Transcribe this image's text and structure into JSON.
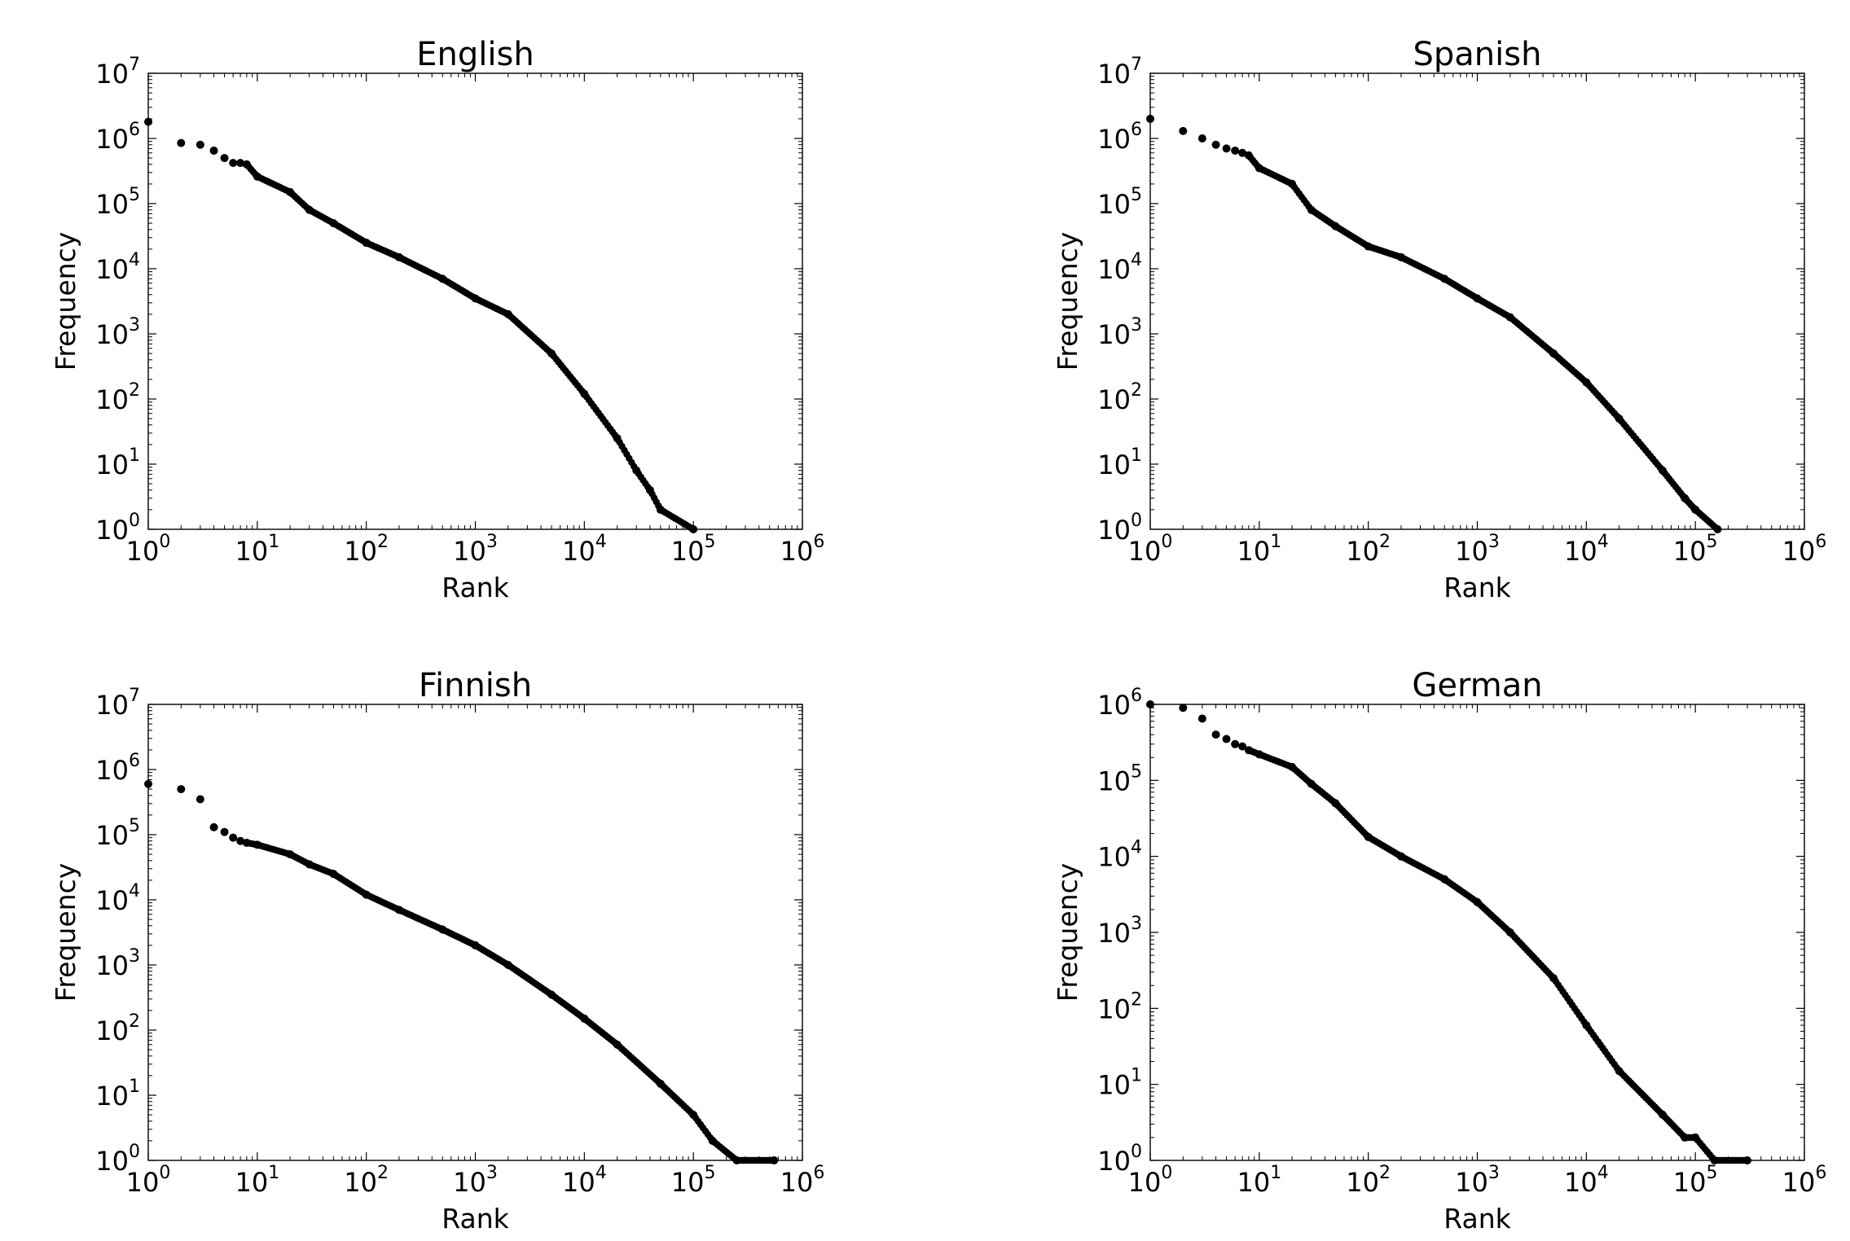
{
  "chart_data": [
    {
      "type": "scatter",
      "title": "English",
      "xlabel": "Rank",
      "ylabel": "Frequency",
      "xscale": "log",
      "yscale": "log",
      "xlim": [
        1,
        1000000
      ],
      "ylim": [
        1,
        10000000
      ],
      "x_tick_labels": [
        "10^0",
        "10^1",
        "10^2",
        "10^3",
        "10^4",
        "10^5",
        "10^6"
      ],
      "y_tick_labels": [
        "10^0",
        "10^1",
        "10^2",
        "10^3",
        "10^4",
        "10^5",
        "10^6",
        "10^7"
      ],
      "grid": false,
      "legend": "none",
      "marker_color": "#000000",
      "x": [
        1,
        2,
        3,
        4,
        5,
        6,
        7,
        8,
        10,
        20,
        30,
        50,
        100,
        200,
        500,
        1000,
        2000,
        5000,
        10000,
        20000,
        30000,
        40000,
        50000,
        100000
      ],
      "y": [
        1800000,
        850000,
        800000,
        650000,
        500000,
        420000,
        420000,
        400000,
        260000,
        150000,
        80000,
        50000,
        25000,
        15000,
        7000,
        3500,
        2000,
        500,
        120,
        25,
        8,
        4,
        2,
        1
      ]
    },
    {
      "type": "scatter",
      "title": "Spanish",
      "xlabel": "Rank",
      "ylabel": "Frequency",
      "xscale": "log",
      "yscale": "log",
      "xlim": [
        1,
        1000000
      ],
      "ylim": [
        1,
        10000000
      ],
      "x_tick_labels": [
        "10^0",
        "10^1",
        "10^2",
        "10^3",
        "10^4",
        "10^5",
        "10^6"
      ],
      "y_tick_labels": [
        "10^0",
        "10^1",
        "10^2",
        "10^3",
        "10^4",
        "10^5",
        "10^6",
        "10^7"
      ],
      "grid": false,
      "legend": "none",
      "marker_color": "#000000",
      "x": [
        1,
        2,
        3,
        4,
        5,
        6,
        7,
        8,
        10,
        20,
        30,
        50,
        100,
        200,
        500,
        1000,
        2000,
        5000,
        10000,
        20000,
        50000,
        80000,
        100000,
        160000
      ],
      "y": [
        2000000,
        1300000,
        1000000,
        800000,
        700000,
        650000,
        600000,
        550000,
        350000,
        200000,
        80000,
        45000,
        22000,
        15000,
        7000,
        3500,
        1800,
        500,
        180,
        50,
        8,
        3,
        2,
        1
      ]
    },
    {
      "type": "scatter",
      "title": "Finnish",
      "xlabel": "Rank",
      "ylabel": "Frequency",
      "xscale": "log",
      "yscale": "log",
      "xlim": [
        1,
        1000000
      ],
      "ylim": [
        1,
        10000000
      ],
      "x_tick_labels": [
        "10^0",
        "10^1",
        "10^2",
        "10^3",
        "10^4",
        "10^5",
        "10^6"
      ],
      "y_tick_labels": [
        "10^0",
        "10^1",
        "10^2",
        "10^3",
        "10^4",
        "10^5",
        "10^6",
        "10^7"
      ],
      "grid": false,
      "legend": "none",
      "marker_color": "#000000",
      "x": [
        1,
        2,
        3,
        4,
        5,
        6,
        7,
        8,
        10,
        20,
        30,
        50,
        100,
        200,
        500,
        1000,
        2000,
        5000,
        10000,
        20000,
        50000,
        100000,
        150000,
        250000,
        550000
      ],
      "y": [
        600000,
        500000,
        350000,
        130000,
        110000,
        90000,
        80000,
        75000,
        70000,
        50000,
        35000,
        25000,
        12000,
        7000,
        3500,
        2000,
        1000,
        350,
        150,
        60,
        15,
        5,
        2,
        1,
        1
      ]
    },
    {
      "type": "scatter",
      "title": "German",
      "xlabel": "Rank",
      "ylabel": "Frequency",
      "xscale": "log",
      "yscale": "log",
      "xlim": [
        1,
        1000000
      ],
      "ylim": [
        1,
        1000000
      ],
      "x_tick_labels": [
        "10^0",
        "10^1",
        "10^2",
        "10^3",
        "10^4",
        "10^5",
        "10^6"
      ],
      "y_tick_labels": [
        "10^0",
        "10^1",
        "10^2",
        "10^3",
        "10^4",
        "10^5",
        "10^6"
      ],
      "grid": false,
      "legend": "none",
      "marker_color": "#000000",
      "x": [
        1,
        2,
        3,
        4,
        5,
        6,
        7,
        8,
        10,
        20,
        30,
        50,
        100,
        200,
        500,
        1000,
        2000,
        5000,
        10000,
        20000,
        50000,
        80000,
        100000,
        150000,
        300000
      ],
      "y": [
        1000000,
        900000,
        650000,
        400000,
        350000,
        300000,
        280000,
        250000,
        220000,
        150000,
        90000,
        50000,
        18000,
        10000,
        5000,
        2500,
        1000,
        250,
        60,
        15,
        4,
        2,
        2,
        1,
        1
      ]
    }
  ]
}
